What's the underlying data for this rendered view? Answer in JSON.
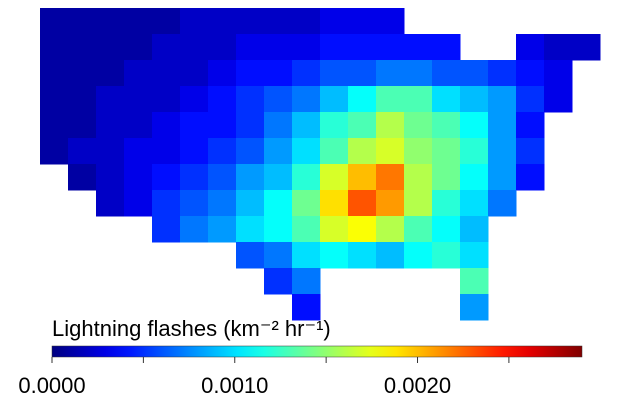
{
  "chart_data": {
    "type": "heatmap",
    "colormap": "jet",
    "colorbar_label": "Lightning flashes (km⁻² hr⁻¹)",
    "clim": [
      0,
      0.0029
    ],
    "ticks": [
      {
        "value": 0,
        "label": "0.0000"
      },
      {
        "value": 0.001,
        "label": "0.0010"
      },
      {
        "value": 0.002,
        "label": "0.0020"
      }
    ],
    "minor_ticks": [
      0.0005,
      0.0015,
      0.0025
    ],
    "cells": [
      [
        0.0001,
        0.0001,
        0.0001,
        0.0001,
        0.0001,
        0.0002,
        0.0002,
        0.0002,
        0.0002,
        0.0002,
        0.0003,
        0.0003,
        0.0003,
        null,
        null,
        null,
        null,
        null,
        null,
        null
      ],
      [
        0.0001,
        0.0001,
        0.0001,
        0.0001,
        0.0002,
        0.0002,
        0.0002,
        0.0003,
        0.0003,
        0.0003,
        0.0004,
        0.0004,
        0.0004,
        0.0004,
        0.0004,
        null,
        null,
        0.0003,
        0.0002,
        0.0002
      ],
      [
        0.0001,
        0.0001,
        0.0001,
        0.0002,
        0.0002,
        0.0002,
        0.0003,
        0.0004,
        0.0004,
        0.0005,
        0.0006,
        0.0006,
        0.0007,
        0.0007,
        0.0006,
        0.0006,
        0.0005,
        0.0004,
        0.0003,
        null
      ],
      [
        0.0001,
        0.0001,
        0.0002,
        0.0002,
        0.0002,
        0.0003,
        0.0004,
        0.0005,
        0.0006,
        0.0007,
        0.0009,
        0.0011,
        0.0013,
        0.0013,
        0.001,
        0.0009,
        0.0008,
        0.0005,
        0.0003,
        null
      ],
      [
        0.0001,
        0.0001,
        0.0002,
        0.0002,
        0.0003,
        0.0004,
        0.0004,
        0.0005,
        0.0007,
        0.0009,
        0.0012,
        0.0013,
        0.0016,
        0.0014,
        0.0013,
        0.0011,
        0.0008,
        0.0004,
        null,
        null
      ],
      [
        0.0001,
        0.0002,
        0.0002,
        0.0003,
        0.0003,
        0.0004,
        0.0005,
        0.0006,
        0.0008,
        0.001,
        0.0013,
        0.0016,
        0.0017,
        0.0015,
        0.0014,
        0.0012,
        0.0008,
        0.0005,
        null,
        null
      ],
      [
        null,
        0.0001,
        0.0002,
        0.0003,
        0.0004,
        0.0005,
        0.0006,
        0.0008,
        0.0009,
        0.0012,
        0.0017,
        0.002,
        0.0022,
        0.0016,
        0.0014,
        0.0011,
        0.0008,
        0.0004,
        null,
        null
      ],
      [
        null,
        null,
        0.0002,
        0.0003,
        0.0005,
        0.0006,
        0.0007,
        0.0009,
        0.0011,
        0.0014,
        0.0019,
        0.0023,
        0.0021,
        0.0016,
        0.0012,
        0.001,
        0.0007,
        null,
        null,
        null
      ],
      [
        null,
        null,
        null,
        null,
        0.0005,
        0.0007,
        0.0008,
        0.001,
        0.0011,
        0.0013,
        0.0017,
        0.0018,
        0.0016,
        0.0013,
        0.0011,
        0.0009,
        null,
        null,
        null,
        null
      ],
      [
        null,
        null,
        null,
        null,
        null,
        null,
        null,
        0.0006,
        0.0007,
        0.001,
        0.0011,
        0.001,
        0.0009,
        0.0011,
        0.0012,
        0.001,
        null,
        null,
        null,
        null
      ],
      [
        null,
        null,
        null,
        null,
        null,
        null,
        null,
        null,
        0.0005,
        0.0007,
        null,
        null,
        null,
        null,
        null,
        0.0013,
        null,
        null,
        null,
        null
      ],
      [
        null,
        null,
        null,
        null,
        null,
        null,
        null,
        null,
        null,
        0.0004,
        null,
        null,
        null,
        null,
        null,
        0.0008,
        null,
        null,
        null,
        null
      ]
    ]
  }
}
